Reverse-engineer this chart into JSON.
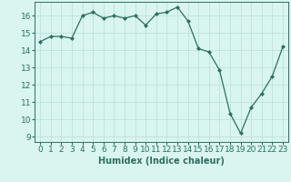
{
  "x": [
    0,
    1,
    2,
    3,
    4,
    5,
    6,
    7,
    8,
    9,
    10,
    11,
    12,
    13,
    14,
    15,
    16,
    17,
    18,
    19,
    20,
    21,
    22,
    23
  ],
  "y": [
    14.5,
    14.8,
    14.8,
    14.7,
    16.0,
    16.2,
    15.85,
    16.0,
    15.85,
    16.0,
    15.45,
    16.1,
    16.2,
    16.5,
    15.7,
    14.1,
    13.9,
    12.85,
    10.35,
    9.2,
    10.7,
    11.5,
    12.5,
    14.2
  ],
  "line_color": "#2e6e60",
  "marker": "D",
  "marker_size": 2.0,
  "bg_color": "#d9f5f0",
  "grid_color": "#b8ddd8",
  "xlabel": "Humidex (Indice chaleur)",
  "xlim": [
    -0.5,
    23.5
  ],
  "ylim": [
    8.7,
    16.8
  ],
  "yticks": [
    9,
    10,
    11,
    12,
    13,
    14,
    15,
    16
  ],
  "xticks": [
    0,
    1,
    2,
    3,
    4,
    5,
    6,
    7,
    8,
    9,
    10,
    11,
    12,
    13,
    14,
    15,
    16,
    17,
    18,
    19,
    20,
    21,
    22,
    23
  ],
  "label_fontsize": 7,
  "tick_fontsize": 6.5
}
